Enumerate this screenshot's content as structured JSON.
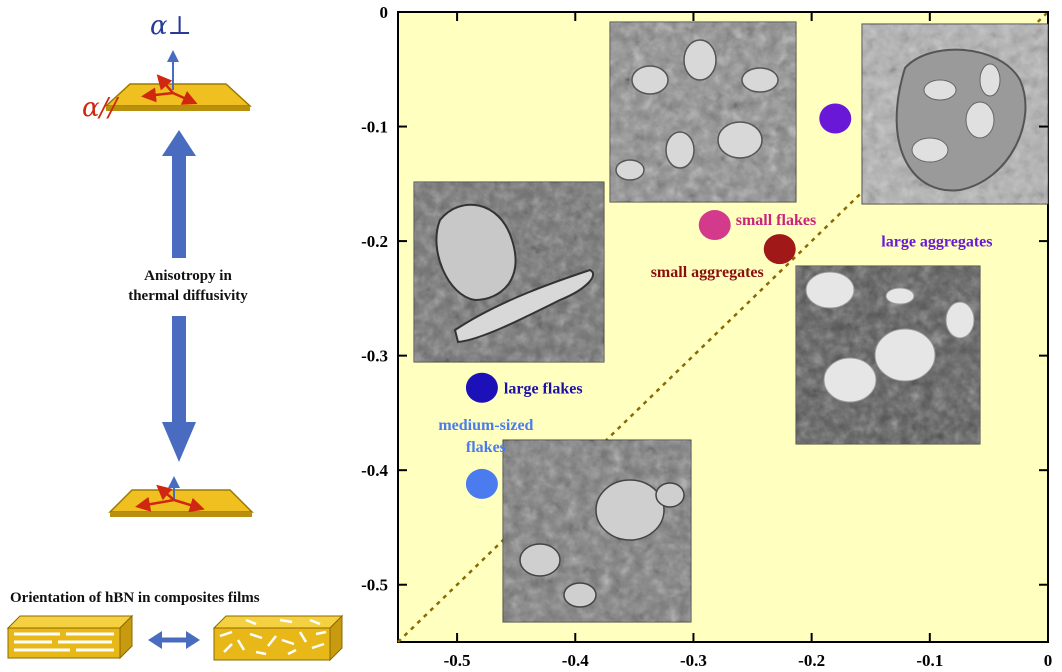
{
  "chart_data": {
    "type": "scatter",
    "title": "",
    "xlabel": "",
    "ylabel": "",
    "xlim": [
      -0.55,
      0
    ],
    "ylim": [
      -0.55,
      0
    ],
    "x_ticks": [
      -0.5,
      -0.4,
      -0.3,
      -0.2,
      -0.1,
      0
    ],
    "y_ticks": [
      -0.5,
      -0.4,
      -0.3,
      -0.2,
      -0.1,
      0
    ],
    "x_tick_labels": [
      "-0.5",
      "-0.4",
      "-0.3",
      "-0.2",
      "-0.1",
      "0"
    ],
    "y_tick_labels": [
      "-0.5",
      "-0.4",
      "-0.3",
      "-0.2",
      "-0.1",
      "0"
    ],
    "background": "#ffffc0",
    "diagonal_line": {
      "from": [
        -0.55,
        -0.55
      ],
      "to": [
        0,
        0
      ],
      "style": "dotted",
      "color": "#8a6a00"
    },
    "grid": false,
    "points": [
      {
        "x": -0.18,
        "y": -0.093,
        "color": "#6a18d8",
        "label": "large aggregates",
        "label_color": "#6a18d8"
      },
      {
        "x": -0.282,
        "y": -0.186,
        "color": "#d43a8c",
        "label": "small flakes",
        "label_color": "#c8247c"
      },
      {
        "x": -0.227,
        "y": -0.207,
        "color": "#a01818",
        "label": "small aggregates",
        "label_color": "#8a1010"
      },
      {
        "x": -0.479,
        "y": -0.328,
        "color": "#1c10b8",
        "label": "large flakes",
        "label_color": "#1c10a8"
      },
      {
        "x": -0.479,
        "y": -0.412,
        "color": "#4a7cf0",
        "label": "medium-sized flakes",
        "label_lines": [
          "medium-sized",
          "flakes"
        ],
        "label_color": "#4a7cf0"
      }
    ]
  },
  "figure": {
    "alpha_perp_label": "α⊥",
    "alpha_par_label": "α//",
    "anisotropy_label_lines": [
      "Anisotropy in",
      "thermal diffusivity"
    ],
    "orientation_label": "Orientation of hBN in composites films"
  },
  "colors": {
    "arrow_blue": "#4a6cc0",
    "plate_gold": "#f0c020",
    "red_axes": "#d02810",
    "sem_gray": "#8a8a8a"
  }
}
